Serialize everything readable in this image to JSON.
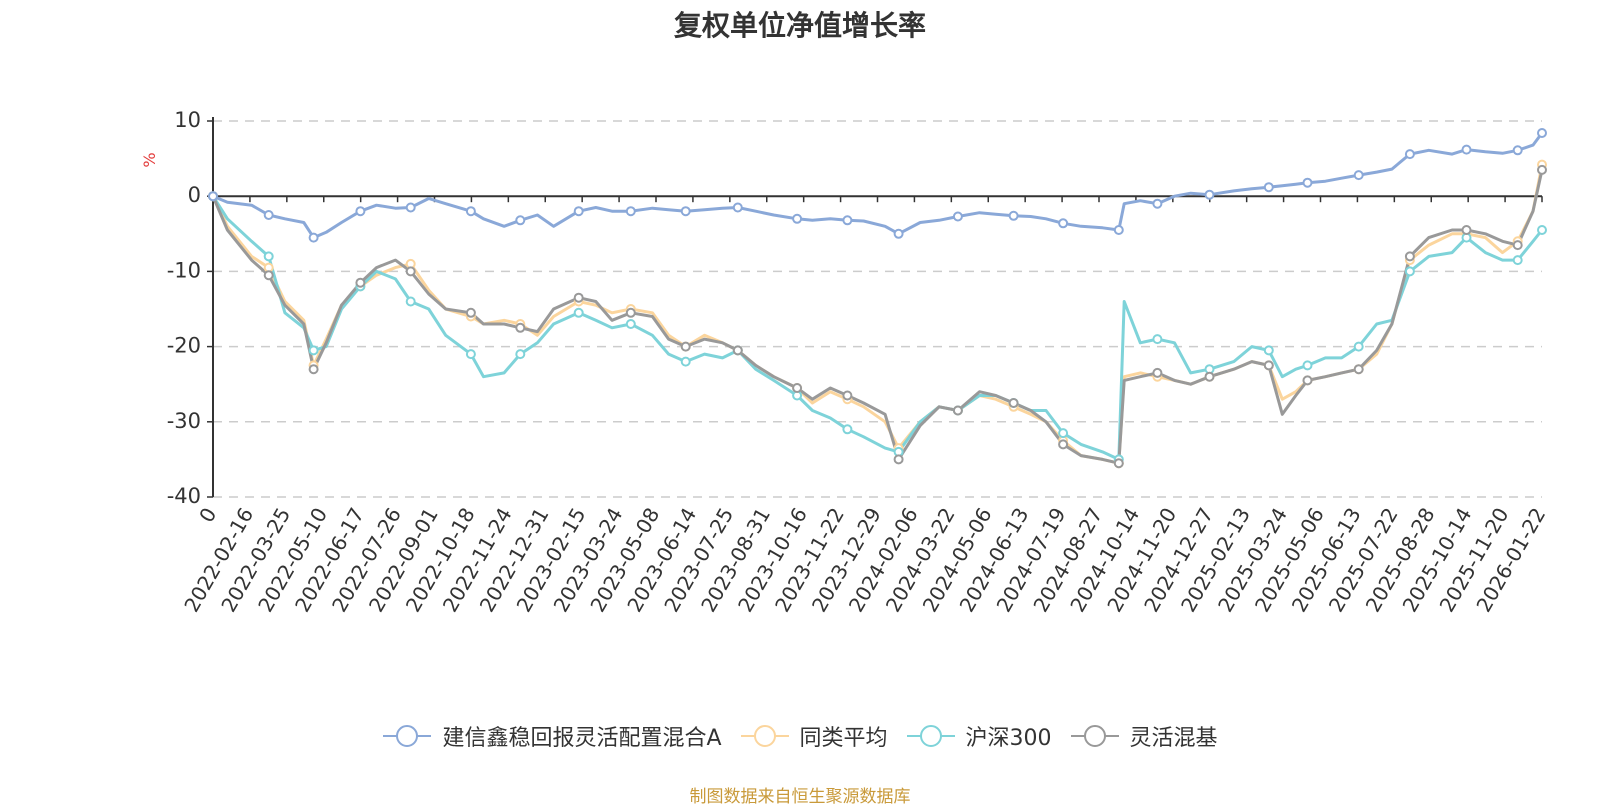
{
  "chart_data": {
    "type": "line",
    "title": "复权单位净值增长率",
    "ylabel": "%",
    "ylim": [
      -40,
      10
    ],
    "yticks": [
      10,
      0,
      -10,
      -20,
      -30,
      -40
    ],
    "grid": true,
    "legend_position": "bottom-center",
    "x_tick_labels": [
      "0",
      "2022-02-16",
      "2022-03-25",
      "2022-05-10",
      "2022-06-17",
      "2022-07-26",
      "2022-09-01",
      "2022-10-18",
      "2022-11-24",
      "2022-12-31",
      "2023-02-15",
      "2023-03-24",
      "2023-05-08",
      "2023-06-14",
      "2023-07-25",
      "2023-08-31",
      "2023-10-16",
      "2023-11-22",
      "2023-12-29",
      "2024-02-06",
      "2024-03-22",
      "2024-05-06",
      "2024-06-13",
      "2024-07-19",
      "2024-08-27",
      "2024-10-14",
      "2024-11-20",
      "2024-12-27",
      "2025-02-13",
      "2025-03-24",
      "2025-05-06",
      "2025-06-13",
      "2025-07-22",
      "2025-08-28",
      "2025-10-14",
      "2025-11-20",
      "2026-01-22"
    ],
    "x": [
      "2022-01-04",
      "2022-01-20",
      "2022-02-16",
      "2022-03-07",
      "2022-03-25",
      "2022-04-15",
      "2022-04-26",
      "2022-05-10",
      "2022-05-27",
      "2022-06-17",
      "2022-07-05",
      "2022-07-26",
      "2022-08-12",
      "2022-09-01",
      "2022-09-20",
      "2022-10-18",
      "2022-11-01",
      "2022-11-24",
      "2022-12-12",
      "2022-12-31",
      "2023-01-18",
      "2023-02-15",
      "2023-03-06",
      "2023-03-24",
      "2023-04-14",
      "2023-05-08",
      "2023-05-26",
      "2023-06-14",
      "2023-07-05",
      "2023-07-25",
      "2023-08-11",
      "2023-08-31",
      "2023-09-20",
      "2023-10-16",
      "2023-11-02",
      "2023-11-22",
      "2023-12-11",
      "2023-12-29",
      "2024-01-22",
      "2024-02-06",
      "2024-03-01",
      "2024-03-22",
      "2024-04-12",
      "2024-05-06",
      "2024-05-24",
      "2024-06-13",
      "2024-07-02",
      "2024-07-19",
      "2024-08-07",
      "2024-08-27",
      "2024-09-20",
      "2024-10-08",
      "2024-10-14",
      "2024-11-01",
      "2024-11-20",
      "2024-12-09",
      "2024-12-27",
      "2025-01-17",
      "2025-02-13",
      "2025-03-05",
      "2025-03-24",
      "2025-04-08",
      "2025-04-23",
      "2025-05-06",
      "2025-05-26",
      "2025-06-13",
      "2025-07-02",
      "2025-07-22",
      "2025-08-08",
      "2025-08-28",
      "2025-09-18",
      "2025-10-14",
      "2025-10-30",
      "2025-11-20",
      "2025-12-09",
      "2025-12-26",
      "2026-01-12",
      "2026-01-22"
    ],
    "series": [
      {
        "name": "建信鑫稳回报灵活配置混合A",
        "color": "#8aa8d8",
        "values": [
          0,
          -0.8,
          -1.2,
          -2.5,
          -3.0,
          -3.5,
          -5.5,
          -4.8,
          -3.5,
          -2.0,
          -1.2,
          -1.6,
          -1.5,
          -0.3,
          -1.0,
          -2.0,
          -3.0,
          -4.0,
          -3.2,
          -2.5,
          -4.0,
          -2.0,
          -1.5,
          -2.0,
          -2.0,
          -1.6,
          -1.8,
          -2.0,
          -1.8,
          -1.6,
          -1.5,
          -2.0,
          -2.5,
          -3.0,
          -3.2,
          -3.0,
          -3.2,
          -3.3,
          -4.0,
          -5.0,
          -3.5,
          -3.2,
          -2.7,
          -2.2,
          -2.4,
          -2.6,
          -2.7,
          -3.0,
          -3.6,
          -4.0,
          -4.2,
          -4.5,
          -1.0,
          -0.6,
          -1.0,
          0.0,
          0.4,
          0.2,
          0.7,
          1.0,
          1.2,
          1.4,
          1.6,
          1.8,
          2.0,
          2.4,
          2.8,
          3.2,
          3.6,
          5.6,
          6.1,
          5.6,
          6.2,
          5.9,
          5.7,
          6.1,
          6.8,
          8.4
        ]
      },
      {
        "name": "同类平均",
        "color": "#fbd59d",
        "values": [
          0,
          -4.0,
          -8.0,
          -9.5,
          -14.0,
          -16.5,
          -22.5,
          -19.0,
          -14.5,
          -12.0,
          -10.5,
          -9.5,
          -9.0,
          -12.5,
          -15.0,
          -16.0,
          -17.0,
          -16.5,
          -17.0,
          -18.5,
          -16.0,
          -14.0,
          -14.5,
          -15.5,
          -15.0,
          -15.5,
          -18.5,
          -20.0,
          -18.5,
          -19.5,
          -20.5,
          -22.5,
          -24.0,
          -25.5,
          -27.5,
          -26.0,
          -27.0,
          -28.0,
          -30.0,
          -33.5,
          -30.0,
          -28.0,
          -28.5,
          -26.5,
          -27.0,
          -28.0,
          -29.0,
          -30.0,
          -32.5,
          -34.5,
          -35.0,
          -35.5,
          -24.0,
          -23.5,
          -24.0,
          -24.5,
          -25.0,
          -24.0,
          -23.0,
          -22.0,
          -22.5,
          -27.0,
          -26.0,
          -24.5,
          -24.0,
          -23.5,
          -23.0,
          -21.0,
          -17.0,
          -8.5,
          -6.5,
          -5.0,
          -5.0,
          -5.5,
          -7.5,
          -6.0,
          -2.0,
          4.2
        ]
      },
      {
        "name": "沪深300",
        "color": "#7ed3d9",
        "values": [
          0,
          -3.0,
          -6.0,
          -8.0,
          -15.5,
          -17.5,
          -20.5,
          -20.0,
          -15.0,
          -12.0,
          -10.0,
          -11.0,
          -14.0,
          -15.0,
          -18.5,
          -21.0,
          -24.0,
          -23.5,
          -21.0,
          -19.5,
          -17.0,
          -15.5,
          -16.5,
          -17.5,
          -17.0,
          -18.5,
          -21.0,
          -22.0,
          -21.0,
          -21.5,
          -20.5,
          -23.0,
          -24.5,
          -26.5,
          -28.5,
          -29.5,
          -31.0,
          -32.0,
          -33.5,
          -34.0,
          -30.0,
          -28.0,
          -28.5,
          -26.5,
          -26.5,
          -27.5,
          -28.5,
          -28.5,
          -31.5,
          -33.0,
          -34.0,
          -35.0,
          -14.0,
          -19.5,
          -19.0,
          -19.5,
          -23.5,
          -23.0,
          -22.0,
          -20.0,
          -20.5,
          -24.0,
          -23.0,
          -22.5,
          -21.5,
          -21.5,
          -20.0,
          -17.0,
          -16.5,
          -10.0,
          -8.0,
          -7.5,
          -5.5,
          -7.5,
          -8.5,
          -8.5,
          -6.0,
          -4.5
        ]
      },
      {
        "name": "灵活混基",
        "color": "#999999",
        "values": [
          0,
          -4.5,
          -8.5,
          -10.5,
          -14.5,
          -17.0,
          -23.0,
          -19.5,
          -14.5,
          -11.5,
          -9.5,
          -8.5,
          -10.0,
          -13.0,
          -15.0,
          -15.5,
          -17.0,
          -17.0,
          -17.5,
          -18.0,
          -15.0,
          -13.5,
          -14.0,
          -16.5,
          -15.5,
          -16.0,
          -19.0,
          -20.0,
          -19.0,
          -19.5,
          -20.5,
          -22.5,
          -24.0,
          -25.5,
          -27.0,
          -25.5,
          -26.5,
          -27.5,
          -29.0,
          -35.0,
          -30.5,
          -28.0,
          -28.5,
          -26.0,
          -26.5,
          -27.5,
          -28.5,
          -30.0,
          -33.0,
          -34.5,
          -35.0,
          -35.5,
          -24.5,
          -24.0,
          -23.5,
          -24.5,
          -25.0,
          -24.0,
          -23.0,
          -22.0,
          -22.5,
          -29.0,
          -26.5,
          -24.5,
          -24.0,
          -23.5,
          -23.0,
          -20.5,
          -17.0,
          -8.0,
          -5.5,
          -4.5,
          -4.5,
          -5.0,
          -6.0,
          -6.5,
          -2.0,
          3.5
        ]
      }
    ]
  },
  "source_note": "制图数据来自恒生聚源数据库",
  "colors": {
    "source_note": "#c99a3a",
    "unit_label": "#e33b3b"
  }
}
